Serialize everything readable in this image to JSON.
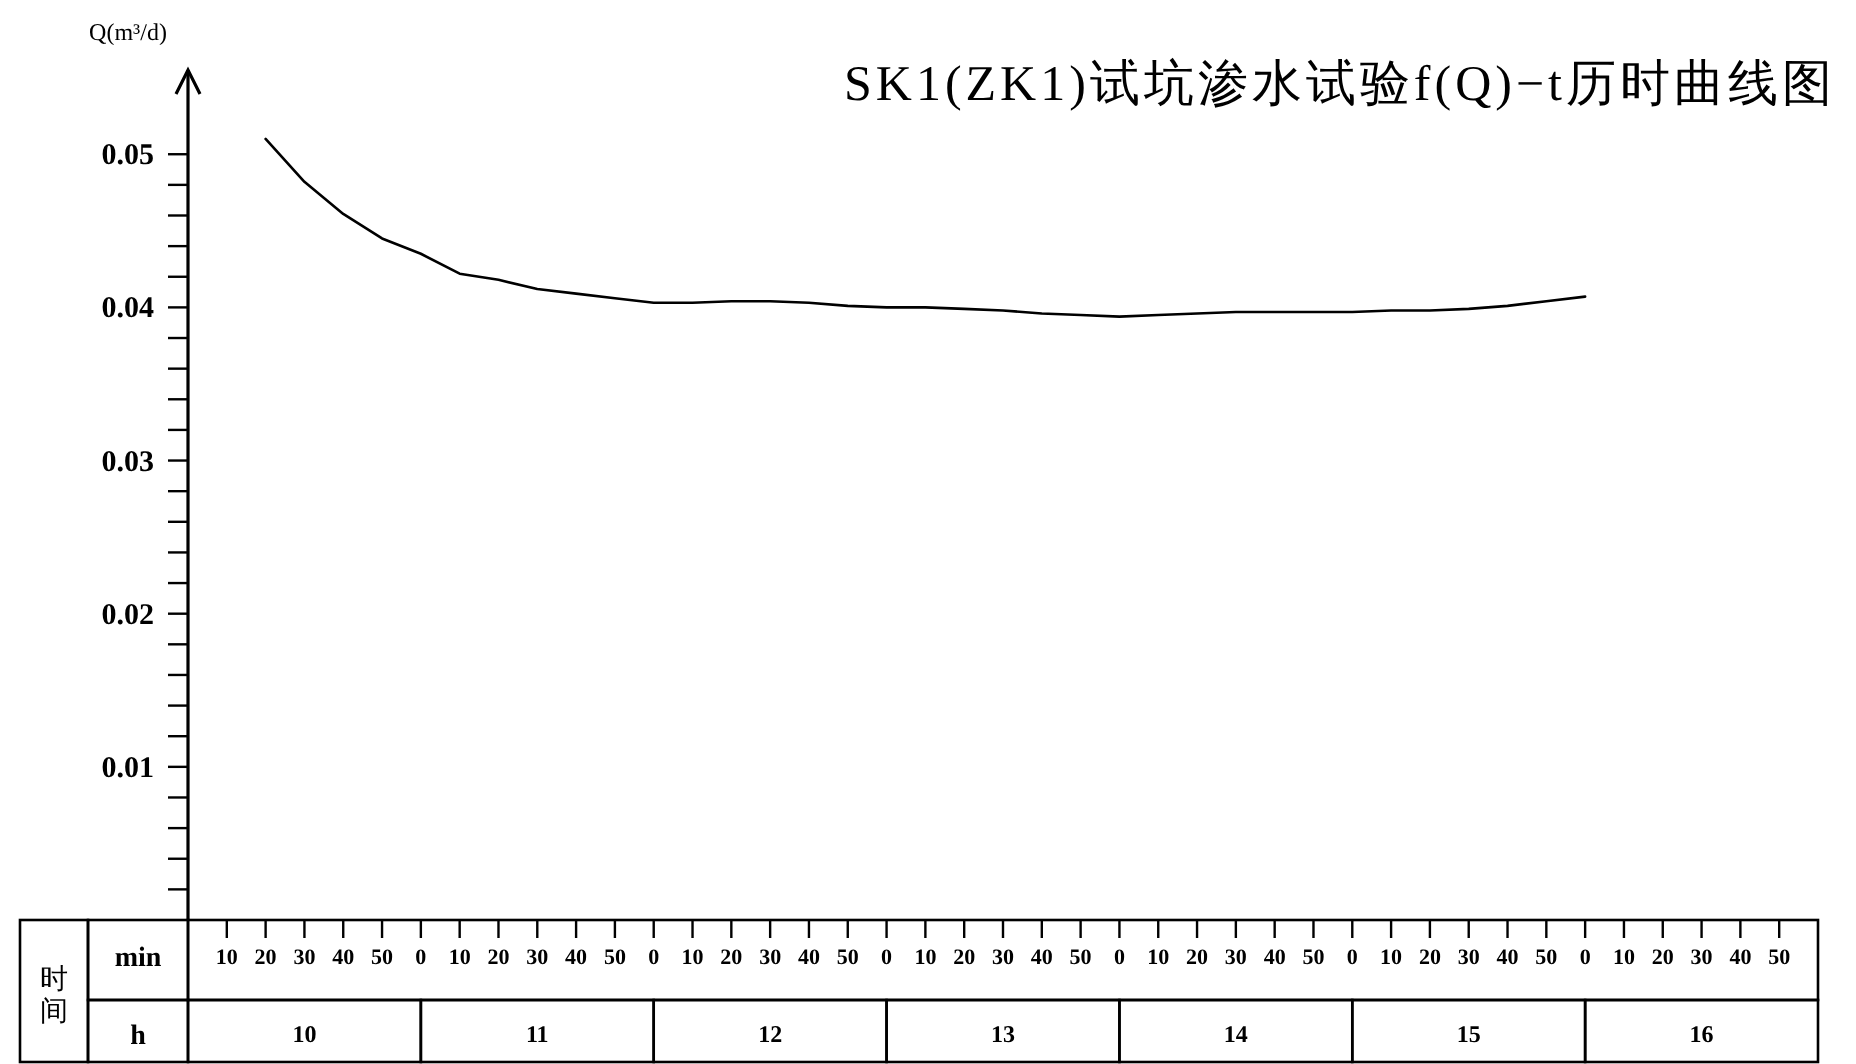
{
  "chart_data": {
    "type": "line",
    "title": "SK1(ZK1)试坑渗水试验f(Q)−t历时曲线图",
    "ylabel": "Q(m³/d)",
    "xlabel": "min",
    "x2label": "h",
    "annotations": [
      "时间",
      "10",
      "11",
      "12",
      "13",
      "14",
      "15",
      "16"
    ],
    "categories": [
      null,
      "10",
      "20",
      "30",
      "40",
      "50",
      "0",
      "10",
      "20",
      "30",
      "40",
      "50",
      "0",
      "10",
      "20",
      "30",
      "40",
      "50",
      "0",
      "10",
      "20",
      "30",
      "40",
      "50",
      "0",
      "10",
      "20",
      "30",
      "40",
      "50",
      "0",
      "10",
      "20",
      "30",
      "40",
      "50",
      "0",
      "10",
      "20",
      "30",
      "40",
      "50"
    ],
    "series": [
      {
        "color": "#000000",
        "values": [
          null,
          null,
          0.051,
          0.0482,
          0.0461,
          0.0445,
          0.0435,
          0.0422,
          0.0418,
          0.0412,
          0.0409,
          0.0406,
          0.0403,
          0.0403,
          0.0404,
          0.0404,
          0.0403,
          0.0401,
          0.04,
          0.04,
          0.0399,
          0.0398,
          0.0396,
          0.0395,
          0.0394,
          0.0395,
          0.0396,
          0.0397,
          0.0397,
          0.0397,
          0.0397,
          0.0398,
          0.0398,
          0.0399,
          0.0401,
          0.0404,
          0.0407,
          null,
          null,
          null,
          null,
          null
        ]
      }
    ],
    "ylim": [
      0,
      0.0555
    ],
    "yticks": [
      {
        "value": 0.002,
        "label": null
      },
      {
        "value": 0.004,
        "label": null
      },
      {
        "value": 0.006,
        "label": null
      },
      {
        "value": 0.008,
        "label": null
      },
      0.01,
      {
        "value": 0.012,
        "label": null
      },
      {
        "value": 0.014,
        "label": null
      },
      {
        "value": 0.016,
        "label": null
      },
      {
        "value": 0.018,
        "label": null
      },
      0.02,
      {
        "value": 0.022,
        "label": null
      },
      {
        "value": 0.024,
        "label": null
      },
      {
        "value": 0.026,
        "label": null
      },
      {
        "value": 0.028,
        "label": null
      },
      0.03,
      {
        "value": 0.032,
        "label": null
      },
      {
        "value": 0.034,
        "label": null
      },
      {
        "value": 0.036,
        "label": null
      },
      {
        "value": 0.038,
        "label": null
      },
      0.04,
      {
        "value": 0.042,
        "label": null
      },
      {
        "value": 0.044,
        "label": null
      },
      {
        "value": 0.046,
        "label": null
      },
      {
        "value": 0.048,
        "label": null
      },
      0.05
    ]
  }
}
